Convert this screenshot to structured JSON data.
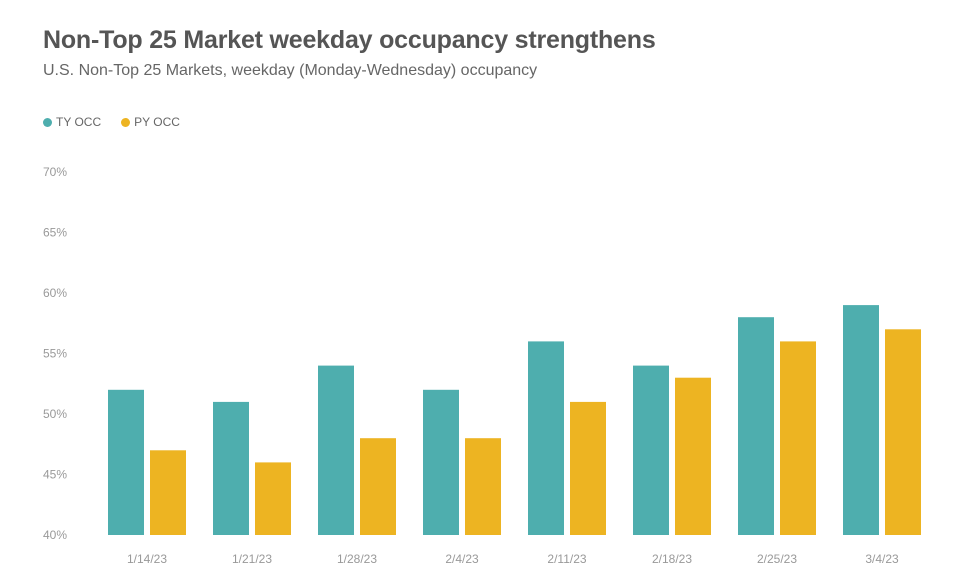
{
  "header": {
    "title": "Non-Top 25 Market weekday occupancy strengthens",
    "subtitle": "U.S. Non-Top 25 Markets, weekday (Monday-Wednesday) occupancy"
  },
  "colors": {
    "ty": "#4eaeae",
    "py": "#edb422"
  },
  "chart_data": {
    "type": "bar",
    "title": "Non-Top 25 Market weekday occupancy strengthens",
    "subtitle": "U.S. Non-Top 25 Markets, weekday (Monday-Wednesday) occupancy",
    "categories": [
      "1/14/23",
      "1/21/23",
      "1/28/23",
      "2/4/23",
      "2/11/23",
      "2/18/23",
      "2/25/23",
      "3/4/23"
    ],
    "series": [
      {
        "name": "TY OCC",
        "color": "#4eaeae",
        "values": [
          52,
          51,
          54,
          52,
          56,
          54,
          58,
          59
        ]
      },
      {
        "name": "PY OCC",
        "color": "#edb422",
        "values": [
          47,
          46,
          48,
          48,
          51,
          53,
          56,
          57
        ]
      }
    ],
    "ylim": [
      40,
      70
    ],
    "yticks": [
      "40%",
      "45%",
      "50%",
      "55%",
      "60%",
      "65%",
      "70%"
    ],
    "ytick_values": [
      40,
      45,
      50,
      55,
      60,
      65,
      70
    ],
    "xlabel": "",
    "ylabel": "",
    "legend": "top-left",
    "grid": false
  }
}
